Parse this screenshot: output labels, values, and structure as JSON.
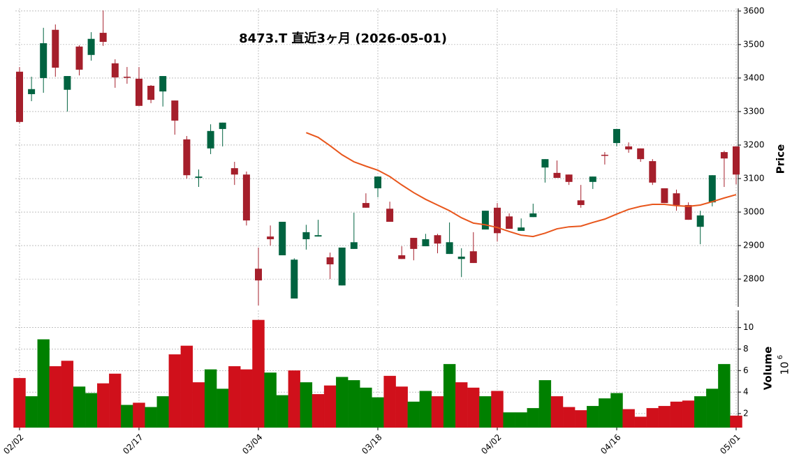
{
  "chart_data": {
    "type": "candlestick",
    "title": "8473.T  直近3ヶ月  (2026-05-01)",
    "ylabel": "Price",
    "grid": true,
    "up_color": "#006340",
    "down_color": "#a51f2b",
    "categories": [
      "02/02",
      null,
      null,
      null,
      null,
      null,
      null,
      null,
      null,
      null,
      "02/17",
      null,
      null,
      null,
      null,
      null,
      null,
      null,
      null,
      null,
      "03/04",
      null,
      null,
      null,
      null,
      null,
      null,
      null,
      null,
      null,
      "03/18",
      null,
      null,
      null,
      null,
      null,
      null,
      null,
      null,
      null,
      "04/02",
      null,
      null,
      null,
      null,
      null,
      null,
      null,
      null,
      null,
      "04/16",
      null,
      null,
      null,
      null,
      null,
      null,
      null,
      null,
      null,
      "05/01"
    ],
    "open": [
      3419,
      3352,
      3400,
      3544,
      3365,
      3494,
      3469,
      3535,
      3444,
      3404,
      3398,
      3377,
      3360,
      3333,
      3217,
      3102,
      3190,
      3248,
      3131,
      3112,
      2831,
      2927,
      2871,
      2742,
      2919,
      2927,
      2865,
      2781,
      2890,
      3027,
      3071,
      3010,
      2871,
      2923,
      2898,
      2931,
      2875,
      2860,
      2883,
      2948,
      3013,
      2987,
      2944,
      2985,
      3133,
      3117,
      3112,
      3035,
      3090,
      3171,
      3206,
      3196,
      3190,
      3152,
      3071,
      3056,
      3021,
      2956,
      3029,
      3179,
      3196
    ],
    "high": [
      3433,
      3404,
      3550,
      3560,
      3406,
      3498,
      3537,
      3602,
      3456,
      3433,
      3433,
      3379,
      3406,
      3333,
      3227,
      3127,
      3262,
      3267,
      3150,
      3121,
      2894,
      2960,
      2971,
      2862,
      2962,
      2977,
      2879,
      2894,
      2998,
      3056,
      3106,
      3031,
      2898,
      2923,
      2935,
      2935,
      2969,
      2892,
      2940,
      3004,
      3027,
      2996,
      2981,
      3025,
      3158,
      3154,
      3112,
      3081,
      3106,
      3179,
      3248,
      3208,
      3190,
      3158,
      3071,
      3067,
      3029,
      3004,
      3110,
      3183,
      3196
    ],
    "low": [
      3265,
      3331,
      3356,
      3404,
      3300,
      3408,
      3452,
      3496,
      3371,
      3383,
      3317,
      3325,
      3315,
      3231,
      3100,
      3075,
      3173,
      3196,
      3081,
      2960,
      2721,
      2900,
      2871,
      2742,
      2888,
      2927,
      2800,
      2781,
      2890,
      3013,
      3044,
      2971,
      2860,
      2856,
      2898,
      2877,
      2875,
      2806,
      2848,
      2948,
      2912,
      2950,
      2944,
      2985,
      3088,
      3102,
      3081,
      3013,
      3069,
      3142,
      3196,
      3177,
      3150,
      3081,
      3027,
      3004,
      2977,
      2904,
      3017,
      3075,
      3083
    ],
    "close": [
      3269,
      3367,
      3504,
      3431,
      3406,
      3425,
      3517,
      3508,
      3402,
      3402,
      3317,
      3335,
      3406,
      3273,
      3110,
      3106,
      3242,
      3267,
      3112,
      2975,
      2796,
      2919,
      2971,
      2858,
      2940,
      2931,
      2844,
      2894,
      2910,
      3013,
      3106,
      2971,
      2860,
      2890,
      2919,
      2906,
      2910,
      2867,
      2848,
      3004,
      2937,
      2950,
      2954,
      2996,
      3158,
      3102,
      3090,
      3021,
      3106,
      3169,
      3248,
      3187,
      3158,
      3088,
      3027,
      3021,
      2977,
      2990,
      3110,
      3160,
      3112
    ],
    "ylim": [
      2717,
      3608
    ],
    "yticks": [
      2800,
      2900,
      3000,
      3100,
      3200,
      3300,
      3400,
      3500,
      3600
    ],
    "ma": {
      "color": "#e8561c",
      "values": [
        null,
        null,
        null,
        null,
        null,
        null,
        null,
        null,
        null,
        null,
        null,
        null,
        null,
        null,
        null,
        null,
        null,
        null,
        null,
        null,
        null,
        null,
        null,
        null,
        3237,
        3223,
        3198,
        3171,
        3150,
        3137,
        3125,
        3106,
        3081,
        3058,
        3038,
        3021,
        3004,
        2983,
        2967,
        2962,
        2954,
        2942,
        2931,
        2927,
        2937,
        2950,
        2956,
        2958,
        2969,
        2979,
        2994,
        3008,
        3017,
        3023,
        3023,
        3019,
        3017,
        3021,
        3031,
        3042,
        3052
      ]
    },
    "volume": {
      "ylabel": "Volume",
      "scale_base": "10",
      "scale_exponent": "6",
      "up_color": "#008000",
      "down_color": "#d0101b",
      "values": [
        5.3,
        3.6,
        8.9,
        6.4,
        6.9,
        4.5,
        3.9,
        4.8,
        5.7,
        2.8,
        3.0,
        2.6,
        3.6,
        7.5,
        8.3,
        4.9,
        6.1,
        4.3,
        6.4,
        6.1,
        10.7,
        5.8,
        3.7,
        6.0,
        4.9,
        3.8,
        4.6,
        5.4,
        5.1,
        4.4,
        3.5,
        5.5,
        4.5,
        3.1,
        4.1,
        3.6,
        6.6,
        4.9,
        4.4,
        3.6,
        4.1,
        2.1,
        2.1,
        2.5,
        5.1,
        3.6,
        2.6,
        2.3,
        2.7,
        3.4,
        3.9,
        2.4,
        1.7,
        2.5,
        2.7,
        3.1,
        3.2,
        3.6,
        4.3,
        6.6,
        1.8
      ],
      "ylim": [
        0.7,
        11.6
      ],
      "yticks": [
        2,
        4,
        6,
        8,
        10
      ]
    }
  }
}
